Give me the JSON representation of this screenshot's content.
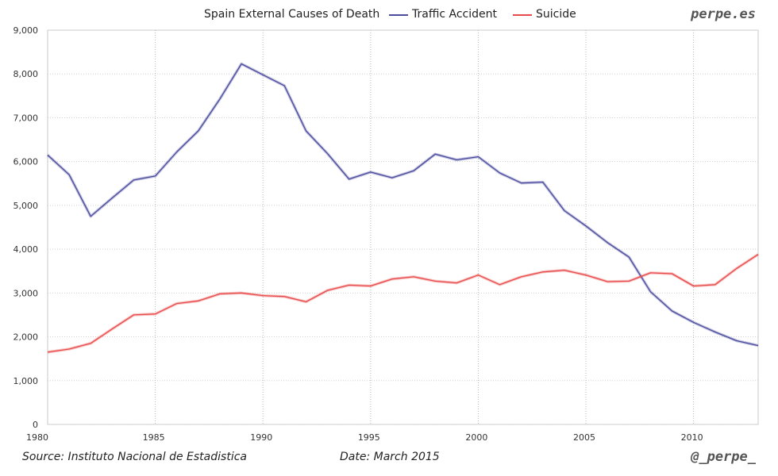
{
  "chart_data": {
    "type": "line",
    "title": "Spain External Causes of Death",
    "x": [
      1980,
      1981,
      1982,
      1983,
      1984,
      1985,
      1986,
      1987,
      1988,
      1989,
      1990,
      1991,
      1992,
      1993,
      1994,
      1995,
      1996,
      1997,
      1998,
      1999,
      2000,
      2001,
      2002,
      2003,
      2004,
      2005,
      2006,
      2007,
      2008,
      2009,
      2010,
      2011,
      2012,
      2013
    ],
    "series": [
      {
        "name": "Traffic Accident",
        "color": "#4b4b9e",
        "values": [
          6150,
          5700,
          4750,
          5170,
          5580,
          5670,
          6220,
          6700,
          7430,
          8230,
          7980,
          7730,
          6700,
          6180,
          5600,
          5760,
          5630,
          5790,
          6170,
          6040,
          6110,
          5740,
          5510,
          5530,
          4880,
          4530,
          4150,
          3820,
          3030,
          2590,
          2330,
          2110,
          1910,
          1800
        ]
      },
      {
        "name": "Suicide",
        "color": "#e84a4a",
        "values": [
          1650,
          1720,
          1850,
          2180,
          2500,
          2520,
          2760,
          2820,
          2980,
          3000,
          2940,
          2920,
          2800,
          3060,
          3180,
          3160,
          3320,
          3370,
          3270,
          3230,
          3410,
          3190,
          3370,
          3480,
          3520,
          3410,
          3260,
          3270,
          3460,
          3440,
          3160,
          3190,
          3560,
          3880
        ]
      }
    ],
    "ylim": [
      0,
      9000
    ],
    "yticks": [
      0,
      1000,
      2000,
      3000,
      4000,
      5000,
      6000,
      7000,
      8000,
      9000
    ],
    "ytick_labels": [
      "0",
      "1,000",
      "2,000",
      "3,000",
      "4,000",
      "5,000",
      "6,000",
      "7,000",
      "8,000",
      "9,000"
    ],
    "xlim": [
      1980,
      2013
    ],
    "xticks": [
      1980,
      1985,
      1990,
      1995,
      2000,
      2005,
      2010
    ],
    "xtick_labels": [
      "1980",
      "1985",
      "1990",
      "1995",
      "2000",
      "2005",
      "2010"
    ],
    "xlabel": "",
    "ylabel": "",
    "grid": true,
    "legend": "top"
  },
  "footer": {
    "brand": "perpe.es",
    "source": "Source: Instituto Nacional de Estadistica",
    "date": "Date: March 2015",
    "handle": "@_perpe_"
  }
}
